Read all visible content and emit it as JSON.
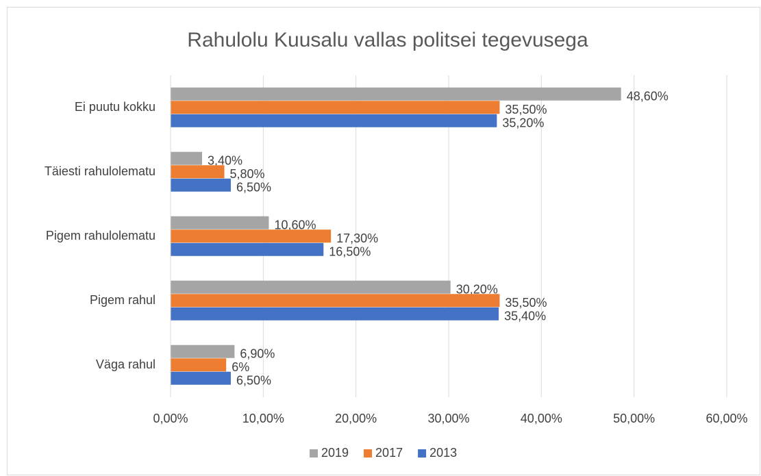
{
  "chart_data": {
    "type": "hbar",
    "title": "Rahulolu Kuusalu vallas politsei tegevusega",
    "categories": [
      "Ei puutu kokku",
      "Täiesti rahulolematu",
      "Pigem rahulolematu",
      "Pigem rahul",
      "Väga rahul"
    ],
    "series": [
      {
        "name": "2019",
        "color": "#a5a5a5",
        "values": [
          48.6,
          3.4,
          10.6,
          30.2,
          6.9
        ],
        "value_labels": [
          "48,60%",
          "3,40%",
          "10,60%",
          "30,20%",
          "6,90%"
        ]
      },
      {
        "name": "2017",
        "color": "#ed7d31",
        "values": [
          35.5,
          5.8,
          17.3,
          35.5,
          6
        ],
        "value_labels": [
          "35,50%",
          "5,80%",
          "17,30%",
          "35,50%",
          "6%"
        ]
      },
      {
        "name": "2013",
        "color": "#4472c4",
        "values": [
          35.2,
          6.5,
          16.5,
          35.4,
          6.5
        ],
        "value_labels": [
          "35,20%",
          "6,50%",
          "16,50%",
          "35,40%",
          "6,50%"
        ]
      }
    ],
    "xlim": [
      0,
      60
    ],
    "xticks": [
      {
        "value": 0,
        "label": "0,00%"
      },
      {
        "value": 10,
        "label": "10,00%"
      },
      {
        "value": 20,
        "label": "20,00%"
      },
      {
        "value": 30,
        "label": "30,00%"
      },
      {
        "value": 40,
        "label": "40,00%"
      },
      {
        "value": 50,
        "label": "50,00%"
      },
      {
        "value": 60,
        "label": "60,00%"
      }
    ],
    "grid": true,
    "legend": "bottom"
  }
}
